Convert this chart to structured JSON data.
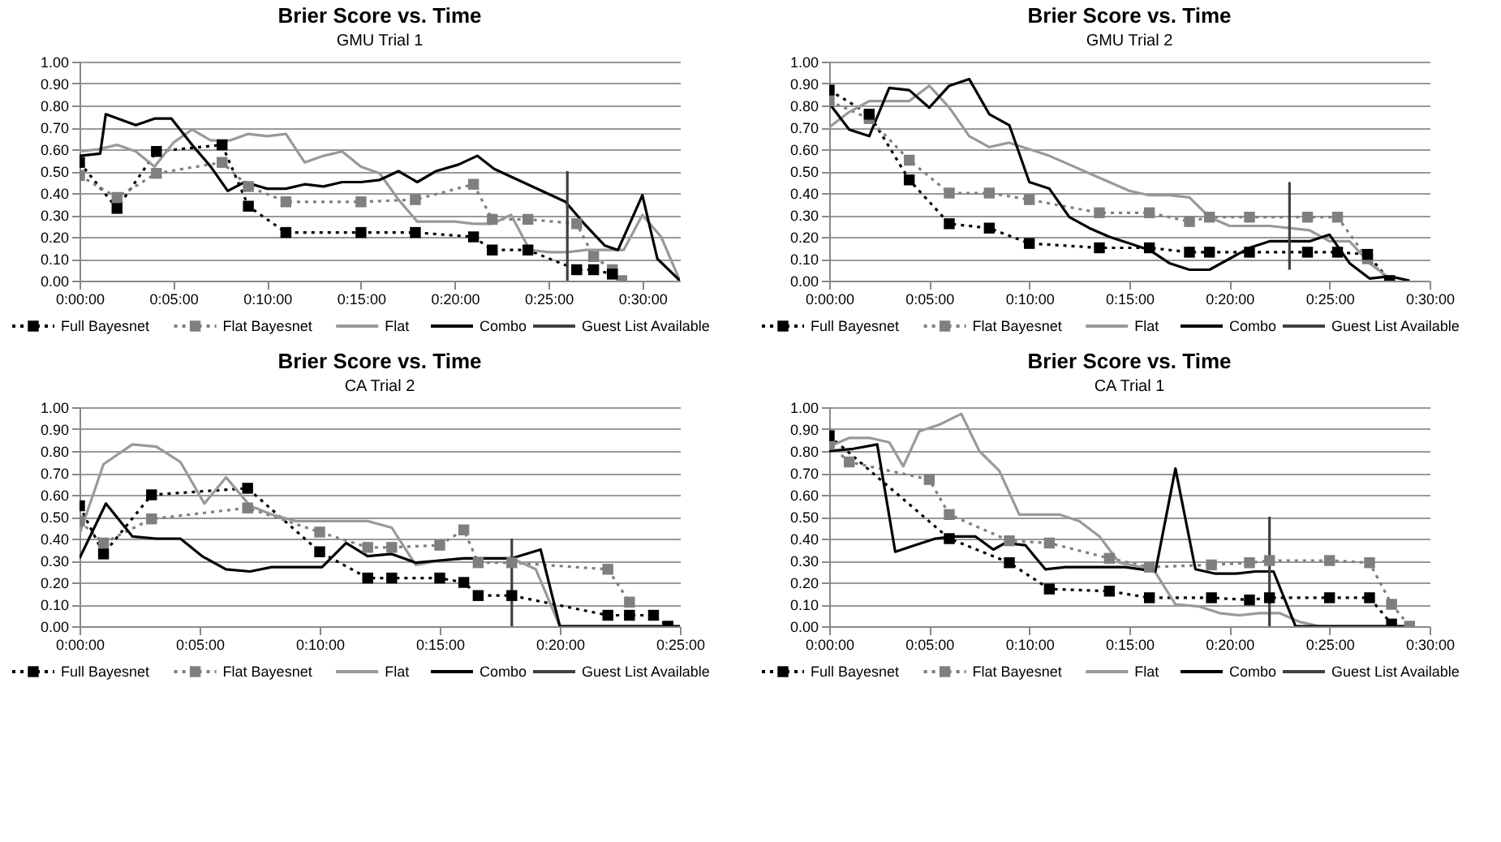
{
  "chart_data": [
    {
      "type": "line",
      "title": "Brier Score vs. Time",
      "subtitle": "GMU Trial 1",
      "xlim": [
        0,
        32
      ],
      "xticks": [
        {
          "value": 0,
          "label": "0:00:00"
        },
        {
          "value": 5,
          "label": "0:05:00"
        },
        {
          "value": 10,
          "label": "0:10:00"
        },
        {
          "value": 15,
          "label": "0:15:00"
        },
        {
          "value": 20,
          "label": "0:20:00"
        },
        {
          "value": 25,
          "label": "0:25:00"
        },
        {
          "value": 30,
          "label": "0:30:00"
        }
      ],
      "ylim": [
        0,
        1
      ],
      "yticks": [
        {
          "value": 0,
          "label": "0.00"
        },
        {
          "value": 0.1,
          "label": "0.10"
        },
        {
          "value": 0.2,
          "label": "0.20"
        },
        {
          "value": 0.3,
          "label": "0.30"
        },
        {
          "value": 0.4,
          "label": "0.40"
        },
        {
          "value": 0.5,
          "label": "0.50"
        },
        {
          "value": 0.6,
          "label": "0.60"
        },
        {
          "value": 0.7,
          "label": "0.70"
        },
        {
          "value": 0.8,
          "label": "0.80"
        },
        {
          "value": 0.9,
          "label": "0.90"
        },
        {
          "value": 1,
          "label": "1.00"
        }
      ],
      "grid": "y",
      "legend": "bottom",
      "series": [
        {
          "name": "Full Bayesnet",
          "color": "#000000",
          "marker": "square",
          "line_style": "dotted",
          "x": [
            0,
            2,
            4.1,
            7.6,
            9,
            11,
            15,
            17.9,
            21,
            22,
            23.9,
            26.5,
            27.4,
            28.4
          ],
          "values": [
            0.54,
            0.33,
            0.59,
            0.62,
            0.34,
            0.22,
            0.22,
            0.22,
            0.2,
            0.14,
            0.14,
            0.05,
            0.05,
            0.03
          ]
        },
        {
          "name": "Flat Bayesnet",
          "color": "#7f7f7f",
          "marker": "square",
          "line_style": "dotted",
          "x": [
            0,
            2,
            4.1,
            7.6,
            9,
            11,
            15,
            17.9,
            21,
            22,
            23.9,
            26.5,
            27.4,
            28.4,
            28.9
          ],
          "values": [
            0.48,
            0.38,
            0.49,
            0.54,
            0.43,
            0.36,
            0.36,
            0.37,
            0.44,
            0.28,
            0.28,
            0.26,
            0.11,
            0.05,
            0.0
          ]
        },
        {
          "name": "Flat",
          "color": "#999999",
          "marker": "none",
          "line_style": "solid",
          "x": [
            0,
            1,
            2,
            3,
            4,
            5,
            6,
            7,
            8,
            9,
            10,
            11,
            12,
            13,
            14,
            15,
            16,
            17,
            18,
            19,
            20,
            21,
            22,
            23,
            24,
            25,
            26,
            27,
            28,
            29,
            30,
            31,
            32
          ],
          "values": [
            0.59,
            0.6,
            0.62,
            0.59,
            0.52,
            0.63,
            0.69,
            0.64,
            0.64,
            0.67,
            0.66,
            0.67,
            0.54,
            0.57,
            0.59,
            0.52,
            0.49,
            0.37,
            0.27,
            0.27,
            0.27,
            0.26,
            0.26,
            0.3,
            0.14,
            0.13,
            0.13,
            0.14,
            0.14,
            0.14,
            0.3,
            0.2,
            0.0
          ]
        },
        {
          "name": "Combo",
          "color": "#000000",
          "marker": "none",
          "line_style": "solid",
          "x": [
            0,
            1.1,
            1.4,
            3,
            4,
            4.9,
            6,
            7,
            7.9,
            8.8,
            10,
            11,
            12,
            13,
            14,
            15,
            16,
            17,
            18,
            19,
            20.2,
            21.2,
            22.1,
            25.9,
            26.9,
            28,
            28.7,
            30,
            30.8,
            32
          ],
          "values": [
            0.57,
            0.58,
            0.76,
            0.71,
            0.74,
            0.74,
            0.62,
            0.52,
            0.41,
            0.45,
            0.42,
            0.42,
            0.44,
            0.43,
            0.45,
            0.45,
            0.46,
            0.5,
            0.45,
            0.5,
            0.53,
            0.57,
            0.51,
            0.36,
            0.26,
            0.16,
            0.14,
            0.39,
            0.1,
            0.0
          ]
        },
        {
          "name": "Guest List Available",
          "color": "#404040",
          "marker": "none",
          "line_style": "solid",
          "x": [
            26,
            26
          ],
          "values": [
            0,
            0.5
          ]
        }
      ]
    },
    {
      "type": "line",
      "title": "Brier Score vs. Time",
      "subtitle": "GMU Trial 2",
      "xlim": [
        0,
        30
      ],
      "xticks": [
        {
          "value": 0,
          "label": "0:00:00"
        },
        {
          "value": 5,
          "label": "0:05:00"
        },
        {
          "value": 10,
          "label": "0:10:00"
        },
        {
          "value": 15,
          "label": "0:15:00"
        },
        {
          "value": 20,
          "label": "0:20:00"
        },
        {
          "value": 25,
          "label": "0:25:00"
        },
        {
          "value": 30,
          "label": "0:30:00"
        }
      ],
      "ylim": [
        0,
        1
      ],
      "yticks": [
        {
          "value": 0,
          "label": "0.00"
        },
        {
          "value": 0.1,
          "label": "0.10"
        },
        {
          "value": 0.2,
          "label": "0.20"
        },
        {
          "value": 0.3,
          "label": "0.30"
        },
        {
          "value": 0.4,
          "label": "0.40"
        },
        {
          "value": 0.5,
          "label": "0.50"
        },
        {
          "value": 0.6,
          "label": "0.60"
        },
        {
          "value": 0.7,
          "label": "0.70"
        },
        {
          "value": 0.8,
          "label": "0.80"
        },
        {
          "value": 0.9,
          "label": "0.90"
        },
        {
          "value": 1,
          "label": "1.00"
        }
      ],
      "grid": "y",
      "legend": "bottom",
      "series": [
        {
          "name": "Full Bayesnet",
          "color": "#000000",
          "marker": "square",
          "line_style": "dotted",
          "x": [
            0,
            2,
            4,
            6,
            8,
            10,
            13.5,
            16,
            18,
            19,
            21,
            23.9,
            25.4,
            26.9,
            28
          ],
          "values": [
            0.87,
            0.76,
            0.46,
            0.26,
            0.24,
            0.17,
            0.15,
            0.15,
            0.13,
            0.13,
            0.13,
            0.13,
            0.13,
            0.12,
            0.0
          ]
        },
        {
          "name": "Flat Bayesnet",
          "color": "#7f7f7f",
          "marker": "square",
          "line_style": "dotted",
          "x": [
            0,
            2,
            4,
            6,
            8,
            10,
            13.5,
            16,
            18,
            19,
            21,
            23.9,
            25.4,
            26.9,
            28
          ],
          "values": [
            0.82,
            0.74,
            0.55,
            0.4,
            0.4,
            0.37,
            0.31,
            0.31,
            0.27,
            0.29,
            0.29,
            0.29,
            0.29,
            0.1,
            0.0
          ]
        },
        {
          "name": "Flat",
          "color": "#999999",
          "marker": "none",
          "line_style": "solid",
          "x": [
            0,
            1,
            2,
            3,
            4,
            5,
            6,
            7,
            8,
            9,
            10,
            11,
            12,
            13,
            14,
            15,
            16,
            17,
            18,
            19,
            20,
            21,
            22,
            23,
            24,
            25,
            26,
            27,
            28
          ],
          "values": [
            0.7,
            0.77,
            0.82,
            0.82,
            0.82,
            0.89,
            0.79,
            0.66,
            0.61,
            0.63,
            0.6,
            0.57,
            0.53,
            0.49,
            0.45,
            0.41,
            0.39,
            0.39,
            0.38,
            0.29,
            0.25,
            0.25,
            0.25,
            0.24,
            0.23,
            0.18,
            0.18,
            0.08,
            0.01
          ]
        },
        {
          "name": "Combo",
          "color": "#000000",
          "marker": "none",
          "line_style": "solid",
          "x": [
            0,
            1,
            2,
            3,
            4,
            5,
            6,
            7,
            8,
            9,
            10,
            11,
            12,
            13,
            14,
            15,
            16,
            17,
            18,
            19,
            20,
            21,
            22,
            23,
            24,
            25,
            26,
            27,
            28,
            29
          ],
          "values": [
            0.81,
            0.69,
            0.66,
            0.88,
            0.87,
            0.79,
            0.89,
            0.92,
            0.76,
            0.71,
            0.45,
            0.42,
            0.29,
            0.24,
            0.2,
            0.17,
            0.14,
            0.08,
            0.05,
            0.05,
            0.1,
            0.15,
            0.18,
            0.18,
            0.18,
            0.21,
            0.08,
            0.01,
            0.02,
            0.0
          ]
        },
        {
          "name": "Guest List Available",
          "color": "#404040",
          "marker": "none",
          "line_style": "solid",
          "x": [
            23,
            23
          ],
          "values": [
            0.05,
            0.45
          ]
        }
      ]
    },
    {
      "type": "line",
      "title": "Brier Score vs. Time",
      "subtitle": "CA Trial 2",
      "xlim": [
        0,
        25
      ],
      "xticks": [
        {
          "value": 0,
          "label": "0:00:00"
        },
        {
          "value": 5,
          "label": "0:05:00"
        },
        {
          "value": 10,
          "label": "0:10:00"
        },
        {
          "value": 15,
          "label": "0:15:00"
        },
        {
          "value": 20,
          "label": "0:20:00"
        },
        {
          "value": 25,
          "label": "0:25:00"
        }
      ],
      "ylim": [
        0,
        1
      ],
      "yticks": [
        {
          "value": 0,
          "label": "0.00"
        },
        {
          "value": 0.1,
          "label": "0.10"
        },
        {
          "value": 0.2,
          "label": "0.20"
        },
        {
          "value": 0.3,
          "label": "0.30"
        },
        {
          "value": 0.4,
          "label": "0.40"
        },
        {
          "value": 0.5,
          "label": "0.50"
        },
        {
          "value": 0.6,
          "label": "0.60"
        },
        {
          "value": 0.7,
          "label": "0.70"
        },
        {
          "value": 0.8,
          "label": "0.80"
        },
        {
          "value": 0.9,
          "label": "0.90"
        },
        {
          "value": 1,
          "label": "1.00"
        }
      ],
      "grid": "y",
      "legend": "bottom",
      "series": [
        {
          "name": "Full Bayesnet",
          "color": "#000000",
          "marker": "square",
          "line_style": "dotted",
          "x": [
            0,
            1,
            3,
            7,
            10,
            12,
            13,
            15,
            16,
            16.6,
            18,
            22,
            22.9,
            23.9,
            24.5
          ],
          "values": [
            0.55,
            0.33,
            0.6,
            0.63,
            0.34,
            0.22,
            0.22,
            0.22,
            0.2,
            0.14,
            0.14,
            0.05,
            0.05,
            0.05,
            0.0
          ]
        },
        {
          "name": "Flat Bayesnet",
          "color": "#7f7f7f",
          "marker": "square",
          "line_style": "dotted",
          "x": [
            0,
            1,
            3,
            7,
            10,
            12,
            13,
            15,
            16,
            16.6,
            18,
            22,
            22.9
          ],
          "values": [
            0.48,
            0.38,
            0.49,
            0.54,
            0.43,
            0.36,
            0.36,
            0.37,
            0.44,
            0.29,
            0.29,
            0.26,
            0.11
          ]
        },
        {
          "name": "Flat",
          "color": "#999999",
          "marker": "none",
          "line_style": "solid",
          "x": [
            0,
            1,
            2.2,
            3.2,
            4.2,
            5.2,
            6.1,
            7.1,
            8,
            9,
            10,
            11,
            12,
            13,
            14,
            15,
            16,
            17,
            18,
            19,
            20,
            25
          ],
          "values": [
            0.42,
            0.74,
            0.83,
            0.82,
            0.75,
            0.56,
            0.68,
            0.55,
            0.51,
            0.48,
            0.48,
            0.48,
            0.48,
            0.45,
            0.28,
            0.3,
            0.31,
            0.31,
            0.31,
            0.26,
            0.0,
            0.0
          ]
        },
        {
          "name": "Combo",
          "color": "#000000",
          "marker": "none",
          "line_style": "solid",
          "x": [
            0,
            1.1,
            2.2,
            3.2,
            4.2,
            5.1,
            6.1,
            7.1,
            8,
            9,
            10.1,
            11.1,
            12,
            13,
            14,
            15,
            16,
            17,
            18,
            19.2,
            20,
            25
          ],
          "values": [
            0.31,
            0.56,
            0.41,
            0.4,
            0.4,
            0.32,
            0.26,
            0.25,
            0.27,
            0.27,
            0.27,
            0.38,
            0.32,
            0.33,
            0.29,
            0.3,
            0.31,
            0.31,
            0.31,
            0.35,
            0.0,
            0.0
          ]
        },
        {
          "name": "Guest List Available",
          "color": "#404040",
          "marker": "none",
          "line_style": "solid",
          "x": [
            18,
            18
          ],
          "values": [
            0,
            0.4
          ]
        }
      ]
    },
    {
      "type": "line",
      "title": "Brier Score vs. Time",
      "subtitle": "CA Trial 1",
      "xlim": [
        0,
        30
      ],
      "xticks": [
        {
          "value": 0,
          "label": "0:00:00"
        },
        {
          "value": 5,
          "label": "0:05:00"
        },
        {
          "value": 10,
          "label": "0:10:00"
        },
        {
          "value": 15,
          "label": "0:15:00"
        },
        {
          "value": 20,
          "label": "0:20:00"
        },
        {
          "value": 25,
          "label": "0:25:00"
        },
        {
          "value": 30,
          "label": "0:30:00"
        }
      ],
      "ylim": [
        0,
        1
      ],
      "yticks": [
        {
          "value": 0,
          "label": "0.00"
        },
        {
          "value": 0.1,
          "label": "0.10"
        },
        {
          "value": 0.2,
          "label": "0.20"
        },
        {
          "value": 0.3,
          "label": "0.30"
        },
        {
          "value": 0.4,
          "label": "0.40"
        },
        {
          "value": 0.5,
          "label": "0.50"
        },
        {
          "value": 0.6,
          "label": "0.60"
        },
        {
          "value": 0.7,
          "label": "0.70"
        },
        {
          "value": 0.8,
          "label": "0.80"
        },
        {
          "value": 0.9,
          "label": "0.90"
        },
        {
          "value": 1,
          "label": "1.00"
        }
      ],
      "grid": "y",
      "legend": "bottom",
      "series": [
        {
          "name": "Full Bayesnet",
          "color": "#000000",
          "marker": "square",
          "line_style": "dotted",
          "x": [
            0,
            6,
            9,
            11,
            14,
            16,
            19.1,
            21,
            22,
            25,
            27,
            28.1
          ],
          "values": [
            0.87,
            0.4,
            0.29,
            0.17,
            0.16,
            0.13,
            0.13,
            0.12,
            0.13,
            0.13,
            0.13,
            0.01
          ]
        },
        {
          "name": "Flat Bayesnet",
          "color": "#7f7f7f",
          "marker": "square",
          "line_style": "dotted",
          "x": [
            0,
            1,
            5,
            6,
            9,
            11,
            14,
            16,
            19.1,
            21,
            22,
            25,
            27,
            28.1,
            29
          ],
          "values": [
            0.83,
            0.75,
            0.67,
            0.51,
            0.39,
            0.38,
            0.31,
            0.27,
            0.28,
            0.29,
            0.3,
            0.3,
            0.29,
            0.1,
            0.0
          ]
        },
        {
          "name": "Flat",
          "color": "#999999",
          "marker": "none",
          "line_style": "solid",
          "x": [
            0,
            1,
            2,
            3,
            3.7,
            4.5,
            5.5,
            6.6,
            7.5,
            8.5,
            9.5,
            10.5,
            11.5,
            12.5,
            13.5,
            14.5,
            16.2,
            17.3,
            18.5,
            19.5,
            20.5,
            21.5,
            22.5,
            23.5,
            24.5,
            29
          ],
          "values": [
            0.82,
            0.86,
            0.86,
            0.84,
            0.73,
            0.89,
            0.92,
            0.97,
            0.8,
            0.71,
            0.51,
            0.51,
            0.51,
            0.48,
            0.41,
            0.29,
            0.26,
            0.1,
            0.09,
            0.06,
            0.05,
            0.06,
            0.06,
            0.02,
            0.0,
            0.0
          ]
        },
        {
          "name": "Combo",
          "color": "#000000",
          "marker": "none",
          "line_style": "solid",
          "x": [
            0,
            1.2,
            2.4,
            3.3,
            4.3,
            5.3,
            6.2,
            7.3,
            8.2,
            8.8,
            9.8,
            10.8,
            11.8,
            12.8,
            13.8,
            14.8,
            16.3,
            17.3,
            18.3,
            19.3,
            20.3,
            21.3,
            22.2,
            23.3,
            29
          ],
          "values": [
            0.8,
            0.81,
            0.83,
            0.34,
            0.37,
            0.4,
            0.41,
            0.41,
            0.35,
            0.38,
            0.37,
            0.26,
            0.27,
            0.27,
            0.27,
            0.27,
            0.25,
            0.72,
            0.26,
            0.24,
            0.24,
            0.25,
            0.25,
            0.0,
            0.0
          ]
        },
        {
          "name": "Guest List Available",
          "color": "#404040",
          "marker": "none",
          "line_style": "solid",
          "x": [
            22,
            22
          ],
          "values": [
            0,
            0.5
          ]
        }
      ]
    }
  ]
}
